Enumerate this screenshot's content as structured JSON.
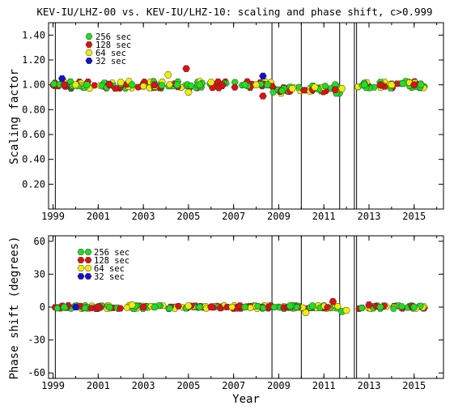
{
  "chart_data": [
    {
      "type": "scatter",
      "title": "KEV-IU/LHZ-00 vs. KEV-IU/LHZ-10: scaling and phase shift, c>0.999",
      "ylabel": "Scaling factor",
      "xlabel": "",
      "xlim": [
        1998.8,
        2016.3
      ],
      "ylim": [
        0.0,
        1.5
      ],
      "x_ticks": [
        "1999",
        "2001",
        "2003",
        "2005",
        "2007",
        "2009",
        "2011",
        "2013",
        "2015"
      ],
      "y_ticks": [
        "0.20",
        "0.40",
        "0.60",
        "0.80",
        "1.00",
        "1.20",
        "1.40"
      ],
      "y_tick_values": [
        0.2,
        0.4,
        0.6,
        0.8,
        1.0,
        1.2,
        1.4
      ],
      "vertical_lines": [
        1999.1,
        2008.7,
        2010.0,
        2011.7,
        2012.35,
        2012.45
      ],
      "legend": {
        "placement": "top-left"
      },
      "series": [
        {
          "name": "256 sec",
          "color": "#22dd22",
          "x": [
            1999.5,
            2000.5,
            2001.5,
            2002.5,
            2003.5,
            2004.5,
            2005.5,
            2006.5,
            2007.5,
            2008.5,
            2009.5,
            2010.5,
            2011.5,
            2012.8,
            2013.5,
            2014.5,
            2015.3
          ],
          "y": [
            1.0,
            1.0,
            1.0,
            1.0,
            1.0,
            1.0,
            1.0,
            1.0,
            1.0,
            1.0,
            0.98,
            0.99,
            1.0,
            1.0,
            1.02,
            1.01,
            1.0
          ]
        },
        {
          "name": "128 sec",
          "color": "#dd1111",
          "x": [
            1999.5,
            2001.5,
            2003.5,
            2004.9,
            2006.5,
            2008.3,
            2009.5,
            2010.5,
            2011.5,
            2013.5,
            2015.0
          ],
          "y": [
            1.0,
            1.0,
            1.0,
            1.13,
            1.0,
            0.91,
            0.95,
            0.96,
            0.96,
            1.0,
            1.0
          ]
        },
        {
          "name": "64 sec",
          "color": "#eeee00",
          "x": [
            2000.0,
            2002.0,
            2004.1,
            2005.0,
            2006.0,
            2008.0,
            2009.6,
            2010.6,
            2011.8,
            2014.0
          ],
          "y": [
            1.0,
            1.02,
            1.08,
            0.94,
            1.02,
            1.0,
            0.97,
            0.98,
            0.97,
            1.0
          ]
        },
        {
          "name": "32 sec",
          "color": "#1111cc",
          "x": [
            1999.4,
            2008.3
          ],
          "y": [
            1.05,
            1.07
          ]
        }
      ]
    },
    {
      "type": "scatter",
      "title": "",
      "ylabel": "Phase shift (degrees)",
      "xlabel": "Year",
      "xlim": [
        1998.8,
        2016.3
      ],
      "ylim": [
        -65,
        65
      ],
      "x_ticks": [
        "1999",
        "2001",
        "2003",
        "2005",
        "2007",
        "2009",
        "2011",
        "2013",
        "2015"
      ],
      "y_ticks": [
        "-60",
        "-30",
        "0",
        "30",
        "60"
      ],
      "y_tick_values": [
        -60,
        -30,
        0,
        30,
        60
      ],
      "vertical_lines": [
        1999.1,
        2008.7,
        2010.0,
        2011.7,
        2012.35,
        2012.45
      ],
      "legend": {
        "placement": "top-left"
      },
      "series": [
        {
          "name": "256 sec",
          "color": "#22dd22",
          "x": [
            1999.5,
            2001.5,
            2003.5,
            2005.5,
            2007.5,
            2009.5,
            2010.5,
            2011.8,
            2013.5,
            2015.0
          ],
          "y": [
            0,
            0,
            0,
            0,
            0,
            1,
            1,
            -4,
            0,
            0
          ]
        },
        {
          "name": "128 sec",
          "color": "#dd1111",
          "x": [
            2001.0,
            2003.0,
            2006.0,
            2011.4,
            2013.0
          ],
          "y": [
            0,
            0,
            0,
            5,
            2
          ]
        },
        {
          "name": "64 sec",
          "color": "#eeee00",
          "x": [
            2002.5,
            2005.0,
            2010.2,
            2012.0
          ],
          "y": [
            2,
            1,
            -5,
            -3
          ]
        },
        {
          "name": "32 sec",
          "color": "#1111cc",
          "x": [
            2000.0
          ],
          "y": [
            0
          ]
        }
      ]
    }
  ]
}
